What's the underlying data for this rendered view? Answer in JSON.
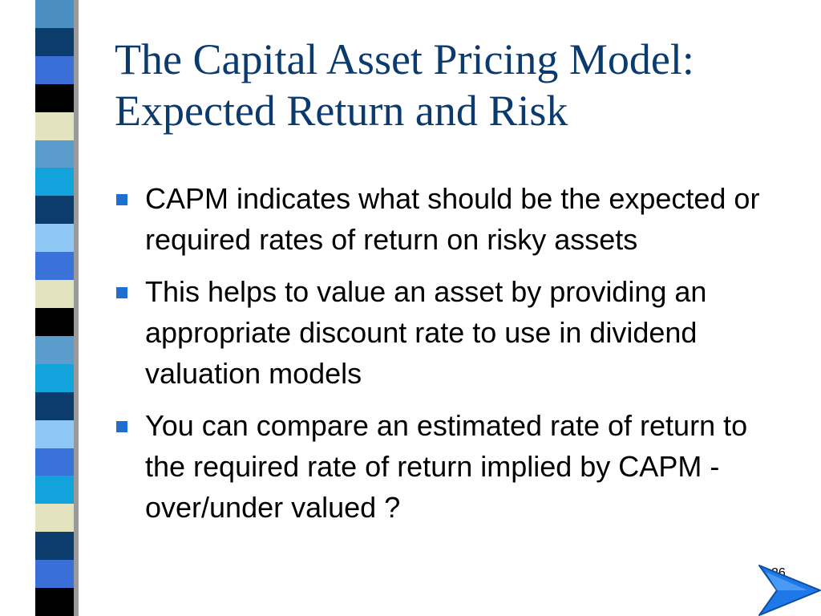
{
  "slide": {
    "title_line_1": "The Capital Asset Pricing Model:",
    "title_line_2": "Expected Return and Risk",
    "bullets": [
      {
        "text": "CAPM indicates what should be the expected or required rates of return on risky assets"
      },
      {
        "text": "This helps to value an asset by providing an appropriate discount rate to use in dividend valuation models"
      },
      {
        "text": "You can compare an estimated rate of return to the required rate of return implied by CAPM - over/under valued ?"
      }
    ],
    "page_number": "26"
  },
  "colors": {
    "title": "#0b3a6e",
    "bullet_marker": "#1f6fd1",
    "arrow": "#1e78e8",
    "strip": [
      "#4a8fbf",
      "#0c3c6c",
      "#3a6fd8",
      "#000000",
      "#e3e3bf",
      "#5b9ccc",
      "#12a3dc",
      "#0c3c6c",
      "#8fc8f5",
      "#3b72d9",
      "#e3e3bf",
      "#000000",
      "#5b9ccc",
      "#12a3dc",
      "#0c3c6c",
      "#8fc8f5",
      "#3b72d9",
      "#12a3dc",
      "#e3e3bf",
      "#0c3c6c",
      "#3a6fd8",
      "#000000"
    ]
  },
  "icons": {
    "bullet": "square-bullet-icon",
    "next": "next-arrow-icon"
  }
}
